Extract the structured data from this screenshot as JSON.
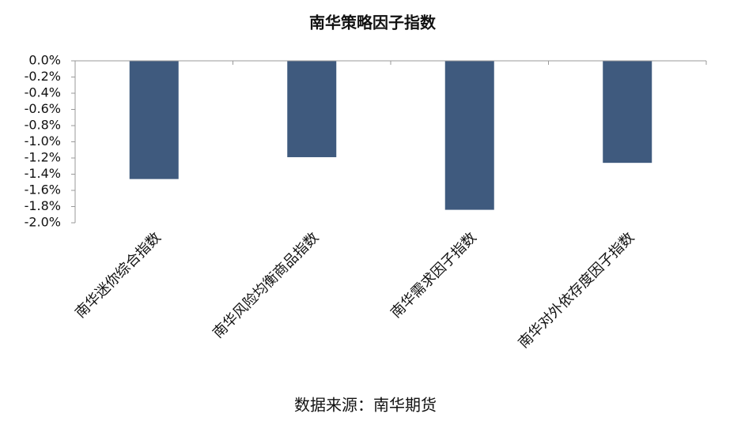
{
  "chart_data": {
    "type": "bar",
    "title": "南华策略因子指数",
    "categories": [
      "南华迷你综合指数",
      "南华风险均衡商品指数",
      "南华需求因子指数",
      "南华对外依存度因子指数"
    ],
    "values": [
      -1.46,
      -1.19,
      -1.84,
      -1.26
    ],
    "color": "#3f5a7e",
    "ylim": [
      -2.0,
      0.0
    ],
    "yticks": [
      {
        "value": 0.0,
        "label": "0.0%"
      },
      {
        "value": -0.2,
        "label": "-0.2%"
      },
      {
        "value": -0.4,
        "label": "-0.4%"
      },
      {
        "value": -0.6,
        "label": "-0.6%"
      },
      {
        "value": -0.8,
        "label": "-0.8%"
      },
      {
        "value": -1.0,
        "label": "-1.0%"
      },
      {
        "value": -1.2,
        "label": "-1.2%"
      },
      {
        "value": -1.4,
        "label": "-1.4%"
      },
      {
        "value": -1.6,
        "label": "-1.6%"
      },
      {
        "value": -1.8,
        "label": "-1.8%"
      },
      {
        "value": -2.0,
        "label": "-2.0%"
      }
    ],
    "source": "数据来源：南华期货"
  }
}
